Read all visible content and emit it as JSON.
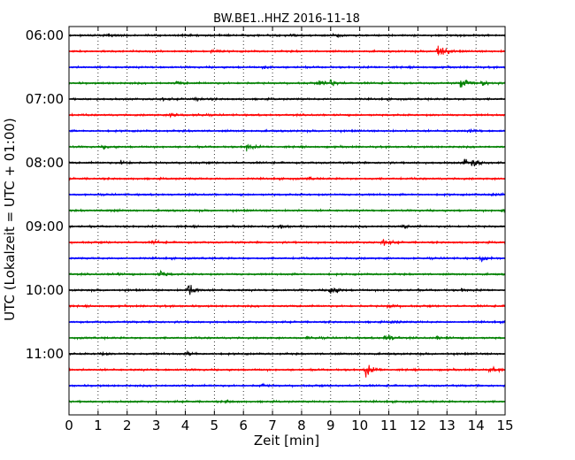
{
  "chart_data": {
    "type": "line",
    "title": "BW.BE1..HHZ 2016-11-18",
    "xlabel": "Zeit  [min]",
    "ylabel": "UTC (Lokalzeit = UTC + 01:00)",
    "xlim": [
      0,
      15
    ],
    "x_ticks": [
      "0",
      "1",
      "2",
      "3",
      "4",
      "5",
      "6",
      "7",
      "8",
      "9",
      "10",
      "11",
      "12",
      "13",
      "14",
      "15"
    ],
    "y_ticks": [
      "06:00",
      "07:00",
      "08:00",
      "09:00",
      "10:00",
      "11:00"
    ],
    "grid": "vertical dotted",
    "colors": [
      "#000000",
      "#ff0000",
      "#0000ff",
      "#008000"
    ],
    "traces": [
      {
        "start": "06:00",
        "events": [
          {
            "t": 1.4,
            "a": 0.3
          },
          {
            "t": 7.6,
            "a": 0.3
          },
          {
            "t": 9.1,
            "a": 0.4
          }
        ]
      },
      {
        "start": "06:15",
        "events": [
          {
            "t": 12.7,
            "a": 1.8
          },
          {
            "t": 4.9,
            "a": 0.2
          }
        ]
      },
      {
        "start": "06:30",
        "events": [
          {
            "t": 6.7,
            "a": 0.3
          }
        ]
      },
      {
        "start": "06:45",
        "events": [
          {
            "t": 8.6,
            "a": 0.5
          },
          {
            "t": 9.0,
            "a": 0.6
          },
          {
            "t": 13.5,
            "a": 1.0
          },
          {
            "t": 14.2,
            "a": 0.6
          },
          {
            "t": 3.7,
            "a": 0.3
          }
        ]
      },
      {
        "start": "07:00",
        "events": [
          {
            "t": 4.4,
            "a": 0.3
          },
          {
            "t": 3.2,
            "a": 0.2
          }
        ]
      },
      {
        "start": "07:15",
        "events": [
          {
            "t": 3.5,
            "a": 0.5
          },
          {
            "t": 4.4,
            "a": 0.2
          }
        ]
      },
      {
        "start": "07:30",
        "events": [
          {
            "t": 13.8,
            "a": 0.3
          }
        ]
      },
      {
        "start": "07:45",
        "events": [
          {
            "t": 6.1,
            "a": 0.6
          },
          {
            "t": 1.2,
            "a": 0.3
          }
        ]
      },
      {
        "start": "08:00",
        "events": [
          {
            "t": 1.8,
            "a": 0.4
          },
          {
            "t": 13.6,
            "a": 0.7
          },
          {
            "t": 13.9,
            "a": 0.6
          }
        ]
      },
      {
        "start": "08:15",
        "events": [
          {
            "t": 8.2,
            "a": 0.2
          }
        ]
      },
      {
        "start": "08:30",
        "events": [
          {
            "t": 14.5,
            "a": 0.4
          }
        ]
      },
      {
        "start": "08:45",
        "events": [
          {
            "t": 14.9,
            "a": 0.3
          },
          {
            "t": 1.3,
            "a": 0.2
          }
        ]
      },
      {
        "start": "09:00",
        "events": [
          {
            "t": 7.3,
            "a": 0.3
          },
          {
            "t": 11.5,
            "a": 0.3
          }
        ]
      },
      {
        "start": "09:15",
        "events": [
          {
            "t": 10.8,
            "a": 0.6
          },
          {
            "t": 2.9,
            "a": 0.2
          }
        ]
      },
      {
        "start": "09:30",
        "events": [
          {
            "t": 14.2,
            "a": 0.5
          }
        ]
      },
      {
        "start": "09:45",
        "events": [
          {
            "t": 3.1,
            "a": 0.7
          },
          {
            "t": 1.5,
            "a": 0.3
          }
        ]
      },
      {
        "start": "10:00",
        "events": [
          {
            "t": 4.1,
            "a": 1.3
          },
          {
            "t": 9.0,
            "a": 1.0
          },
          {
            "t": 13.5,
            "a": 0.3
          }
        ]
      },
      {
        "start": "10:15",
        "events": [
          {
            "t": 11.0,
            "a": 0.3
          }
        ]
      },
      {
        "start": "10:30",
        "events": [
          {
            "t": 11.1,
            "a": 0.3
          }
        ]
      },
      {
        "start": "10:45",
        "events": [
          {
            "t": 10.9,
            "a": 0.9
          },
          {
            "t": 12.7,
            "a": 0.4
          },
          {
            "t": 8.2,
            "a": 0.3
          }
        ]
      },
      {
        "start": "11:00",
        "events": [
          {
            "t": 4.1,
            "a": 0.3
          },
          {
            "t": 1.1,
            "a": 0.2
          }
        ]
      },
      {
        "start": "11:15",
        "events": [
          {
            "t": 10.2,
            "a": 1.2
          },
          {
            "t": 14.5,
            "a": 0.4
          }
        ]
      },
      {
        "start": "11:30",
        "events": [
          {
            "t": 6.6,
            "a": 0.3
          }
        ]
      },
      {
        "start": "11:45",
        "events": [
          {
            "t": 5.4,
            "a": 0.2
          }
        ]
      }
    ]
  }
}
